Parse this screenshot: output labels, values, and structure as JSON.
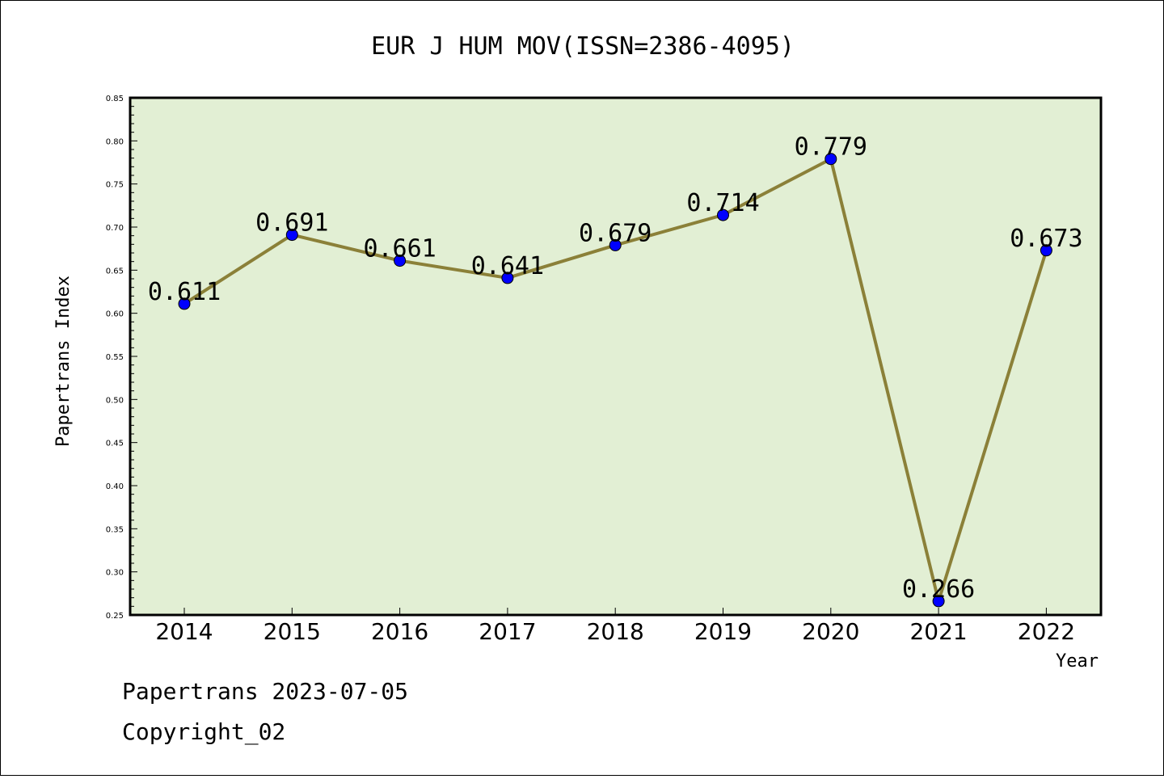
{
  "chart_data": {
    "type": "line",
    "title": "EUR J HUM MOV(ISSN=2386-4095)",
    "xlabel": "Year",
    "ylabel": "Papertrans Index",
    "ylim": [
      0.25,
      0.85
    ],
    "yticks": [
      "0.25",
      "0.30",
      "0.35",
      "0.40",
      "0.45",
      "0.50",
      "0.55",
      "0.60",
      "0.65",
      "0.70",
      "0.75",
      "0.80",
      "0.85"
    ],
    "categories": [
      "2014",
      "2015",
      "2016",
      "2017",
      "2018",
      "2019",
      "2020",
      "2021",
      "2022"
    ],
    "series": [
      {
        "values": [
          0.611,
          0.691,
          0.661,
          0.641,
          0.679,
          0.714,
          0.779,
          0.266,
          0.673
        ],
        "labels": [
          "0.611",
          "0.691",
          "0.661",
          "0.641",
          "0.679",
          "0.714",
          "0.779",
          "0.266",
          "0.673"
        ]
      }
    ],
    "grid": false,
    "colors": {
      "plot_bg": "#e2efd4",
      "line": "#8b8038",
      "marker": "#0000ff"
    }
  },
  "footer": {
    "line1": "Papertrans 2023-07-05",
    "line2": "Copyright_02"
  }
}
